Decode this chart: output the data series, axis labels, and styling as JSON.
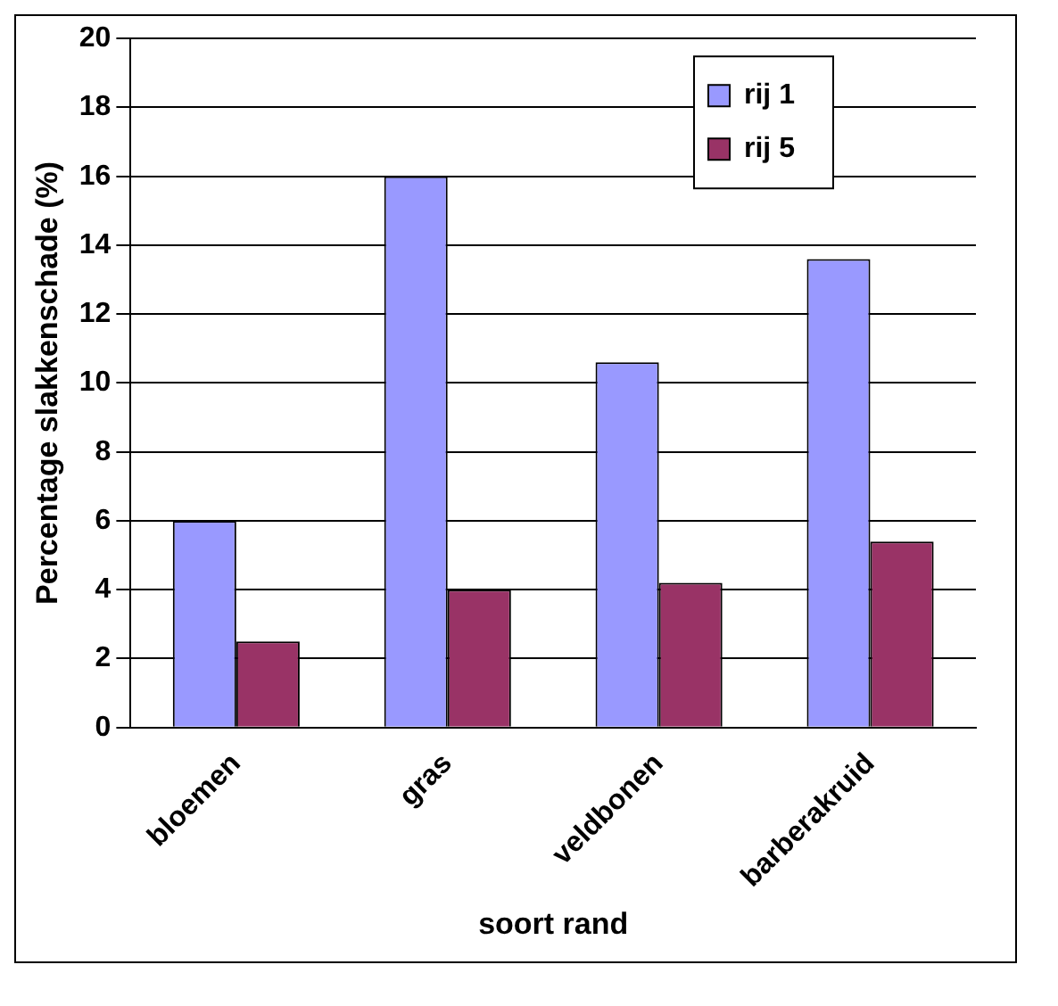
{
  "chart_data": {
    "type": "bar",
    "xlabel": "soort rand",
    "ylabel": "Percentage slakkenschade (%)",
    "categories": [
      "bloemen",
      "gras",
      "veldbonen",
      "barberakruid"
    ],
    "series": [
      {
        "name": "rij 1",
        "color": "#9999ff",
        "values": [
          6,
          16,
          10.6,
          13.6
        ]
      },
      {
        "name": "rij 5",
        "color": "#993366",
        "values": [
          2.5,
          4,
          4.2,
          5.4
        ]
      }
    ],
    "ylim": [
      0,
      20
    ],
    "yticks": [
      0,
      2,
      4,
      6,
      8,
      10,
      12,
      14,
      16,
      18,
      20
    ],
    "grid": "y",
    "legend": "top right"
  }
}
